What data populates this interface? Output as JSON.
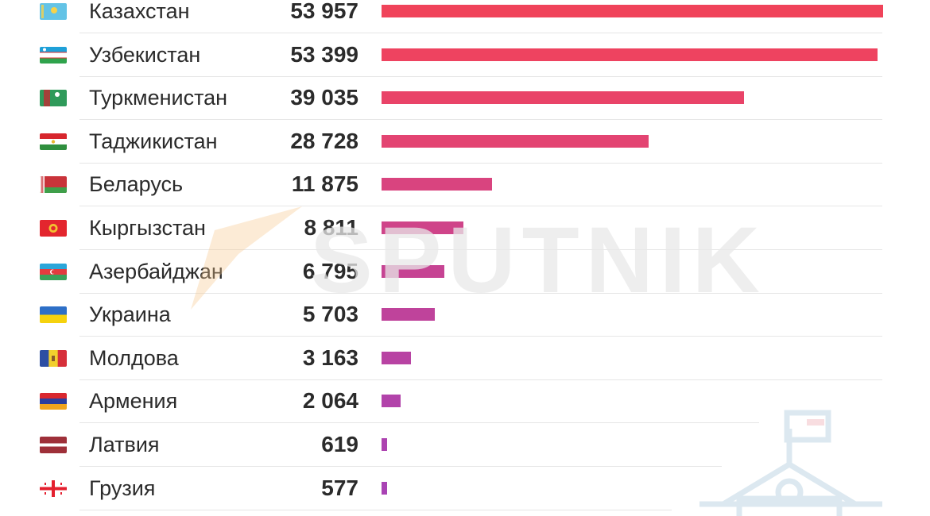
{
  "chart_data": {
    "type": "bar",
    "orientation": "horizontal",
    "categories": [
      "Казахстан",
      "Узбекистан",
      "Туркменистан",
      "Таджикистан",
      "Беларусь",
      "Кыргызстан",
      "Азербайджан",
      "Украина",
      "Молдова",
      "Армения",
      "Латвия",
      "Грузия"
    ],
    "values": [
      53957,
      53399,
      39035,
      28728,
      11875,
      8811,
      6795,
      5703,
      3163,
      2064,
      619,
      577
    ],
    "value_labels": [
      "53 957",
      "53 399",
      "39 035",
      "28 728",
      "11 875",
      "8 811",
      "6 795",
      "5 703",
      "3 163",
      "2 064",
      "619",
      "577"
    ],
    "flags": [
      "kazakhstan-flag",
      "uzbekistan-flag",
      "turkmenistan-flag",
      "tajikistan-flag",
      "belarus-flag",
      "kyrgyzstan-flag",
      "azerbaijan-flag",
      "ukraine-flag",
      "moldova-flag",
      "armenia-flag",
      "latvia-flag",
      "georgia-flag"
    ],
    "bar_colors": [
      "#f0435a",
      "#ee4360",
      "#e94368",
      "#e34472",
      "#d9447f",
      "#cf4489",
      "#c64393",
      "#bf439b",
      "#b843a3",
      "#b243aa",
      "#ad43b0",
      "#a943b4"
    ],
    "xlim": [
      0,
      53957
    ],
    "grid": false,
    "legend": "none"
  },
  "watermark": {
    "brand": "SPUTNIK",
    "icon": "school-building-icon"
  },
  "colors": {
    "text": "#2b2b2b",
    "divider": "#e6e6e6"
  }
}
